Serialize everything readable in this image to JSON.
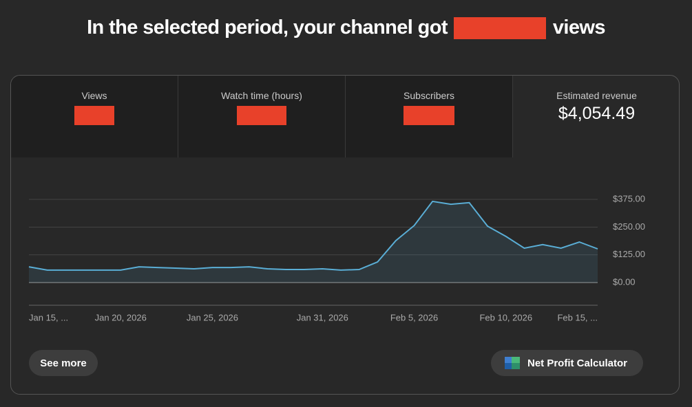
{
  "header": {
    "title_before": "In the selected period, your channel got",
    "title_after": "views"
  },
  "tabs": [
    {
      "label": "Views"
    },
    {
      "label": "Watch time (hours)"
    },
    {
      "label": "Subscribers"
    },
    {
      "label": "Estimated revenue",
      "value": "$4,054.49"
    }
  ],
  "chart_data": {
    "type": "area",
    "categories": [
      "Jan 15, ...",
      null,
      null,
      null,
      null,
      "Jan 20, 2026",
      null,
      null,
      null,
      null,
      "Jan 25, 2026",
      null,
      null,
      null,
      null,
      null,
      "Jan 31, 2026",
      null,
      null,
      null,
      null,
      "Feb 5, 2026",
      null,
      null,
      null,
      null,
      "Feb 10, 2026",
      null,
      null,
      null,
      null,
      "Feb 15, ..."
    ],
    "values": [
      71,
      56,
      56,
      56,
      56,
      56,
      71,
      68,
      65,
      62,
      68,
      68,
      71,
      62,
      59,
      59,
      62,
      56,
      59,
      93,
      189,
      257,
      366,
      353,
      360,
      254,
      208,
      155,
      171,
      155,
      183,
      152
    ],
    "color": "#5aaed6",
    "ylim": [
      0,
      375
    ],
    "yticks": [
      {
        "value": 0,
        "label": "$0.00"
      },
      {
        "value": 125,
        "label": "$125.00"
      },
      {
        "value": 250,
        "label": "$250.00"
      },
      {
        "value": 375,
        "label": "$375.00"
      }
    ],
    "grid": true
  },
  "buttons": {
    "see_more": "See more",
    "calculator": "Net Profit Calculator"
  }
}
